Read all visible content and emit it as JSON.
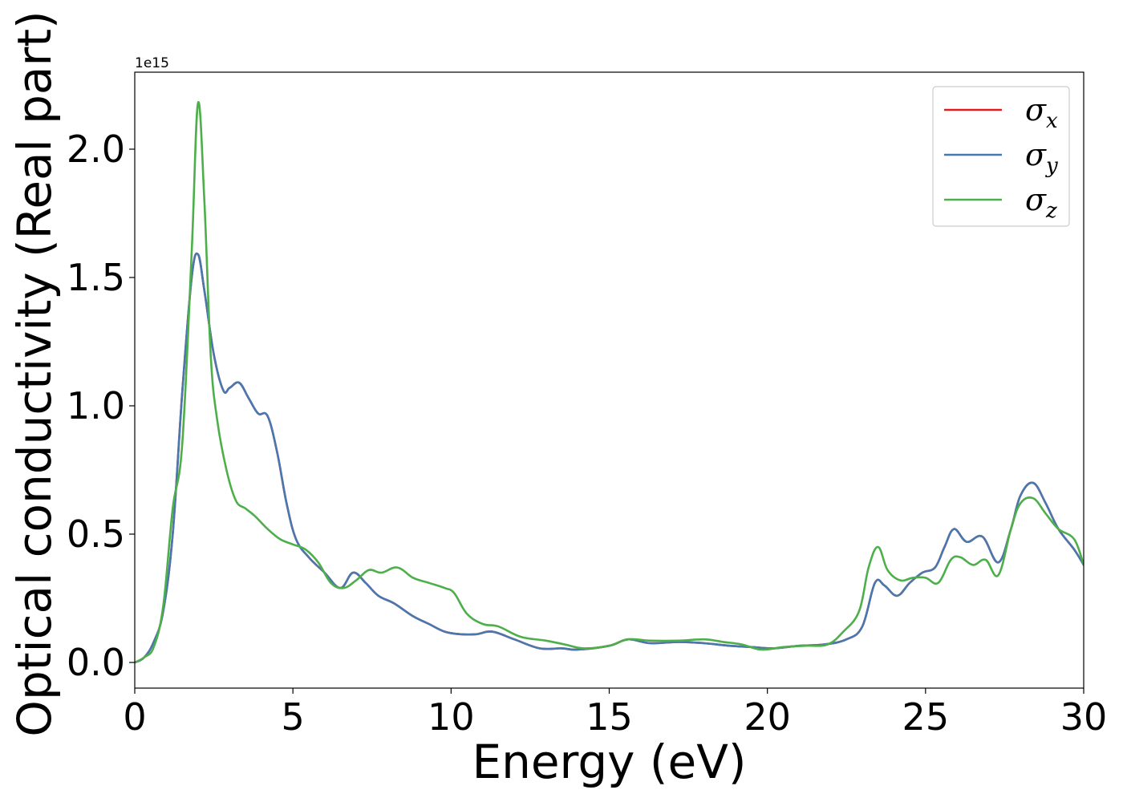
{
  "chart_data": {
    "type": "line",
    "title": "",
    "xlabel": "Energy (eV)",
    "ylabel": "Optical conductivity (Real part)",
    "y_offset_label": "1e15",
    "xlim": [
      0,
      30
    ],
    "ylim": [
      -0.1,
      2.3
    ],
    "xticks": [
      0,
      5,
      10,
      15,
      20,
      25,
      30
    ],
    "xtick_labels": [
      "0",
      "5",
      "10",
      "15",
      "20",
      "25",
      "30"
    ],
    "yticks": [
      0.0,
      0.5,
      1.0,
      1.5,
      2.0
    ],
    "ytick_labels": [
      "0.0",
      "0.5",
      "1.0",
      "1.5",
      "2.0"
    ],
    "grid": false,
    "legend_position": "top-right",
    "series": [
      {
        "name": "σx",
        "legend_base": "σ",
        "legend_sub": "x",
        "color": "#e41a1c",
        "x": [
          0,
          0.3,
          0.6,
          0.9,
          1.2,
          1.5,
          1.8,
          2.0,
          2.2,
          2.5,
          2.8,
          3.0,
          3.3,
          3.6,
          3.9,
          4.2,
          4.5,
          4.8,
          5.1,
          5.5,
          6.0,
          6.5,
          6.9,
          7.3,
          7.7,
          8.2,
          8.8,
          9.3,
          9.8,
          10.3,
          10.8,
          11.3,
          12.0,
          12.8,
          13.5,
          14.0,
          15.0,
          15.6,
          16.3,
          17.2,
          18.0,
          18.8,
          19.5,
          20.2,
          21.0,
          21.8,
          22.5,
          23.0,
          23.4,
          23.7,
          24.1,
          24.5,
          24.9,
          25.3,
          25.6,
          25.9,
          26.3,
          26.8,
          27.3,
          27.7,
          28.0,
          28.4,
          28.8,
          29.2,
          29.7,
          30.0
        ],
        "y": [
          0.0,
          0.02,
          0.08,
          0.2,
          0.5,
          1.05,
          1.5,
          1.59,
          1.45,
          1.2,
          1.06,
          1.07,
          1.09,
          1.03,
          0.97,
          0.96,
          0.82,
          0.62,
          0.48,
          0.41,
          0.35,
          0.29,
          0.35,
          0.31,
          0.26,
          0.23,
          0.18,
          0.15,
          0.12,
          0.11,
          0.11,
          0.12,
          0.09,
          0.055,
          0.055,
          0.05,
          0.065,
          0.09,
          0.075,
          0.08,
          0.075,
          0.065,
          0.06,
          0.055,
          0.065,
          0.07,
          0.09,
          0.14,
          0.31,
          0.3,
          0.26,
          0.31,
          0.35,
          0.37,
          0.45,
          0.52,
          0.47,
          0.49,
          0.39,
          0.52,
          0.65,
          0.7,
          0.62,
          0.52,
          0.44,
          0.38
        ]
      },
      {
        "name": "σy",
        "legend_base": "σ",
        "legend_sub": "y",
        "color": "#4878b0",
        "x": [
          0,
          0.3,
          0.6,
          0.9,
          1.2,
          1.5,
          1.8,
          2.0,
          2.2,
          2.5,
          2.8,
          3.0,
          3.3,
          3.6,
          3.9,
          4.2,
          4.5,
          4.8,
          5.1,
          5.5,
          6.0,
          6.5,
          6.9,
          7.3,
          7.7,
          8.2,
          8.8,
          9.3,
          9.8,
          10.3,
          10.8,
          11.3,
          12.0,
          12.8,
          13.5,
          14.0,
          15.0,
          15.6,
          16.3,
          17.2,
          18.0,
          18.8,
          19.5,
          20.2,
          21.0,
          21.8,
          22.5,
          23.0,
          23.4,
          23.7,
          24.1,
          24.5,
          24.9,
          25.3,
          25.6,
          25.9,
          26.3,
          26.8,
          27.3,
          27.7,
          28.0,
          28.4,
          28.8,
          29.2,
          29.7,
          30.0
        ],
        "y": [
          0.0,
          0.02,
          0.08,
          0.2,
          0.5,
          1.05,
          1.5,
          1.59,
          1.45,
          1.2,
          1.06,
          1.07,
          1.09,
          1.03,
          0.97,
          0.96,
          0.82,
          0.62,
          0.48,
          0.41,
          0.35,
          0.29,
          0.35,
          0.31,
          0.26,
          0.23,
          0.18,
          0.15,
          0.12,
          0.11,
          0.11,
          0.12,
          0.09,
          0.055,
          0.055,
          0.05,
          0.065,
          0.09,
          0.075,
          0.08,
          0.075,
          0.065,
          0.06,
          0.055,
          0.065,
          0.07,
          0.09,
          0.14,
          0.31,
          0.3,
          0.26,
          0.31,
          0.35,
          0.37,
          0.45,
          0.52,
          0.47,
          0.49,
          0.39,
          0.52,
          0.65,
          0.7,
          0.62,
          0.52,
          0.44,
          0.38
        ]
      },
      {
        "name": "σz",
        "legend_base": "σ",
        "legend_sub": "z",
        "color": "#4daf4a",
        "x": [
          0,
          0.3,
          0.6,
          0.9,
          1.2,
          1.5,
          1.8,
          2.0,
          2.2,
          2.4,
          2.6,
          2.9,
          3.2,
          3.5,
          3.8,
          4.2,
          4.6,
          5.0,
          5.4,
          5.8,
          6.2,
          6.6,
          7.0,
          7.4,
          7.8,
          8.3,
          8.8,
          9.3,
          9.8,
          10.1,
          10.5,
          11.0,
          11.5,
          12.2,
          13.0,
          13.6,
          14.2,
          15.0,
          15.6,
          16.3,
          17.2,
          18.0,
          18.6,
          19.2,
          19.8,
          20.5,
          21.2,
          21.9,
          22.4,
          22.9,
          23.2,
          23.5,
          23.8,
          24.2,
          24.6,
          25.0,
          25.4,
          25.8,
          26.1,
          26.5,
          26.9,
          27.3,
          27.7,
          28.0,
          28.4,
          28.8,
          29.2,
          29.7,
          30.0
        ],
        "y": [
          0.0,
          0.02,
          0.06,
          0.22,
          0.6,
          0.85,
          1.6,
          2.18,
          1.8,
          1.2,
          0.95,
          0.75,
          0.63,
          0.6,
          0.57,
          0.52,
          0.48,
          0.46,
          0.44,
          0.39,
          0.31,
          0.29,
          0.32,
          0.36,
          0.35,
          0.37,
          0.33,
          0.31,
          0.29,
          0.27,
          0.19,
          0.15,
          0.14,
          0.1,
          0.085,
          0.07,
          0.055,
          0.065,
          0.09,
          0.085,
          0.085,
          0.09,
          0.08,
          0.07,
          0.05,
          0.06,
          0.065,
          0.07,
          0.12,
          0.2,
          0.37,
          0.45,
          0.36,
          0.32,
          0.33,
          0.33,
          0.31,
          0.4,
          0.41,
          0.38,
          0.4,
          0.34,
          0.52,
          0.62,
          0.64,
          0.58,
          0.52,
          0.48,
          0.38
        ]
      }
    ]
  }
}
